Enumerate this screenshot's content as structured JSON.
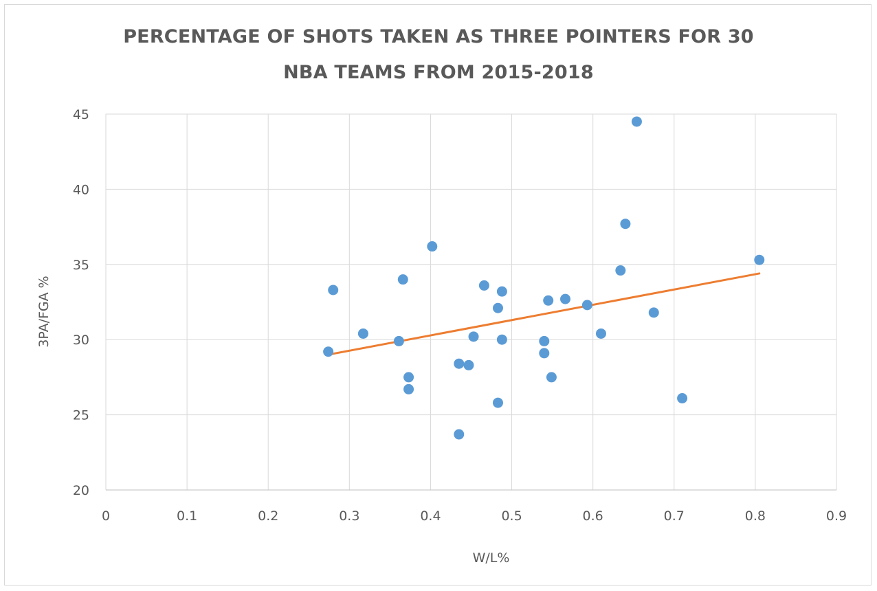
{
  "chart_data": {
    "type": "scatter",
    "title_lines": [
      "PERCENTAGE OF SHOTS TAKEN AS THREE POINTERS FOR 30",
      "NBA TEAMS FROM 2015-2018"
    ],
    "xlabel": "W/L%",
    "ylabel": "3PA/FGA %",
    "xlim": [
      0,
      0.9
    ],
    "ylim": [
      20,
      45
    ],
    "x_ticks": [
      "0",
      "0.1",
      "0.2",
      "0.3",
      "0.4",
      "0.5",
      "0.6",
      "0.7",
      "0.8",
      "0.9"
    ],
    "y_ticks": [
      "20",
      "25",
      "30",
      "35",
      "40",
      "45"
    ],
    "grid": true,
    "series": [
      {
        "type": "scatter",
        "color": "#5b9bd5",
        "points": [
          {
            "x": 0.274,
            "y": 29.2
          },
          {
            "x": 0.28,
            "y": 33.3
          },
          {
            "x": 0.317,
            "y": 30.4
          },
          {
            "x": 0.361,
            "y": 29.9
          },
          {
            "x": 0.366,
            "y": 34.0
          },
          {
            "x": 0.373,
            "y": 27.5
          },
          {
            "x": 0.373,
            "y": 26.7
          },
          {
            "x": 0.402,
            "y": 36.2
          },
          {
            "x": 0.435,
            "y": 28.4
          },
          {
            "x": 0.435,
            "y": 23.7
          },
          {
            "x": 0.447,
            "y": 28.3
          },
          {
            "x": 0.453,
            "y": 30.2
          },
          {
            "x": 0.466,
            "y": 33.6
          },
          {
            "x": 0.483,
            "y": 32.1
          },
          {
            "x": 0.483,
            "y": 25.8
          },
          {
            "x": 0.488,
            "y": 33.2
          },
          {
            "x": 0.488,
            "y": 30.0
          },
          {
            "x": 0.54,
            "y": 29.9
          },
          {
            "x": 0.54,
            "y": 29.1
          },
          {
            "x": 0.545,
            "y": 32.6
          },
          {
            "x": 0.549,
            "y": 27.5
          },
          {
            "x": 0.566,
            "y": 32.7
          },
          {
            "x": 0.593,
            "y": 32.3
          },
          {
            "x": 0.61,
            "y": 30.4
          },
          {
            "x": 0.634,
            "y": 34.6
          },
          {
            "x": 0.64,
            "y": 37.7
          },
          {
            "x": 0.654,
            "y": 44.5
          },
          {
            "x": 0.675,
            "y": 31.8
          },
          {
            "x": 0.71,
            "y": 26.1
          },
          {
            "x": 0.805,
            "y": 35.3
          }
        ]
      },
      {
        "type": "trendline",
        "color": "#ed7d31",
        "points": [
          {
            "x": 0.274,
            "y": 29.0
          },
          {
            "x": 0.805,
            "y": 34.4
          }
        ]
      }
    ]
  }
}
